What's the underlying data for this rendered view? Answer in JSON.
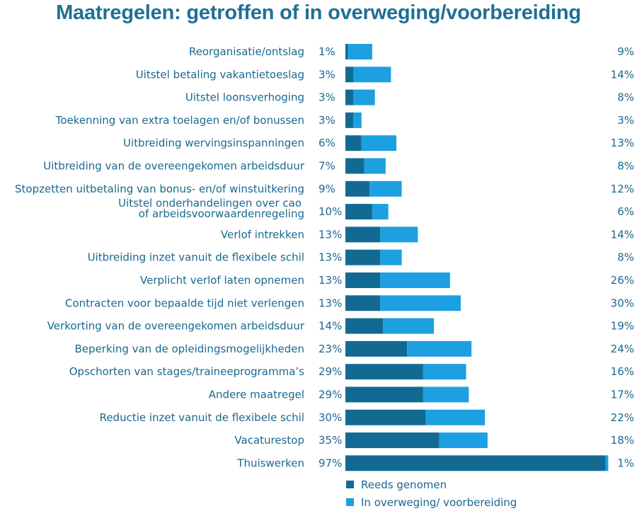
{
  "title": "Maatregelen: getroffen of in overweging/voorbereiding",
  "colors": {
    "taken": "#126a93",
    "considering": "#1ca0e1",
    "text": "#1a6890"
  },
  "chart_data": {
    "type": "bar",
    "orientation": "horizontal",
    "stacked": true,
    "title": "Maatregelen: getroffen of in overweging/voorbereiding",
    "categories": [
      "Reorganisatie/ontslag",
      "Uitstel betaling vakantietoeslag",
      "Uitstel loonsverhoging",
      "Toekenning van extra toelagen en/of bonussen",
      "Uitbreiding wervingsinspanningen",
      "Uitbreiding van de overeengekomen arbeidsduur",
      "Stopzetten uitbetaling van bonus- en/of winstuitkering",
      "Uitstel onderhandelingen over cao\nof arbeidsvoorwaardenregeling",
      "Verlof intrekken",
      "Uitbreiding inzet vanuit de flexibele schil",
      "Verplicht verlof laten opnemen",
      "Contracten voor bepaalde tijd niet verlengen",
      "Verkorting van de overeengekomen arbeidsduur",
      "Beperking van de opleidingsmogelijkheden",
      "Opschorten van stages/traineeprogramma’s",
      "Andere maatregel",
      "Reductie inzet vanuit de flexibele schil",
      "Vacaturestop",
      "Thuiswerken"
    ],
    "series": [
      {
        "name": "Reeds genomen",
        "values": [
          1,
          3,
          3,
          3,
          6,
          7,
          9,
          10,
          13,
          13,
          13,
          13,
          14,
          23,
          29,
          29,
          30,
          35,
          97
        ],
        "labels": [
          "1%",
          "3%",
          "3%",
          "3%",
          "6%",
          "7%",
          "9%",
          "10%",
          "13%",
          "13%",
          "13%",
          "13%",
          "14%",
          "23%",
          "29%",
          "29%",
          "30%",
          "35%",
          "97%"
        ]
      },
      {
        "name": "In overweging/ voorbereiding",
        "values": [
          9,
          14,
          8,
          3,
          13,
          8,
          12,
          6,
          14,
          8,
          26,
          30,
          19,
          24,
          16,
          17,
          22,
          18,
          1
        ],
        "labels": [
          "9%",
          "14%",
          "8%",
          "3%",
          "13%",
          "8%",
          "12%",
          "6%",
          "14%",
          "8%",
          "26%",
          "30%",
          "19%",
          "24%",
          "16%",
          "17%",
          "22%",
          "18%",
          "1%"
        ]
      }
    ],
    "xlim": [
      0,
      98
    ],
    "grid": false,
    "legend": "bottom"
  }
}
